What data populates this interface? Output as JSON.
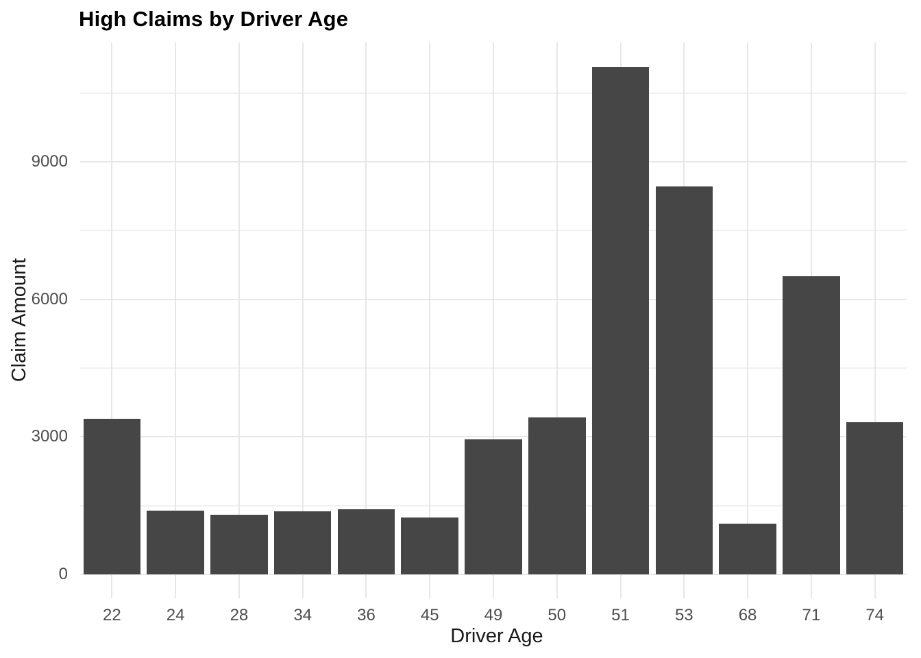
{
  "page": {
    "background": "#ffffff"
  },
  "chart_data": {
    "type": "bar",
    "title": "High Claims by Driver Age",
    "xlabel": "Driver Age",
    "ylabel": "Claim Amount",
    "categories": [
      "22",
      "24",
      "28",
      "34",
      "36",
      "45",
      "49",
      "50",
      "51",
      "53",
      "68",
      "71",
      "74"
    ],
    "values": [
      3400,
      1390,
      1300,
      1370,
      1425,
      1240,
      2950,
      3420,
      11060,
      8460,
      1100,
      6500,
      3320
    ],
    "y_ticks": [
      0,
      3000,
      6000,
      9000
    ],
    "y_tick_labels": [
      "0",
      "3000",
      "6000",
      "9000"
    ],
    "y_minor_ticks": [
      1500,
      4500,
      7500,
      10500
    ],
    "ylim": [
      0,
      11600
    ],
    "grid": "on",
    "legend": "none",
    "bar_width_fraction": 0.9,
    "colors": {
      "bar": "#464646",
      "major_grid": "#e7e7e7",
      "minor_grid": "#f1f1f1",
      "tick_label": "#4d4d4d",
      "axis_title": "#1a1a1a",
      "title": "#000000",
      "background": "#ffffff"
    }
  }
}
